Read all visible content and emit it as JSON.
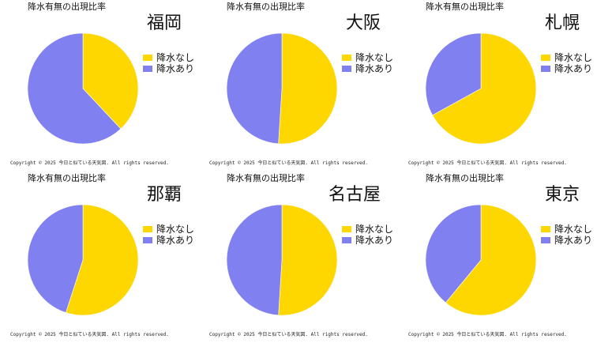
{
  "colors": {
    "no_precip": "#ffd700",
    "precip": "#8080f0"
  },
  "chart_data": [
    {
      "type": "pie",
      "title": "降水有無の出現比率",
      "city": "福岡",
      "categories": [
        "降水なし",
        "降水あり"
      ],
      "values": [
        38,
        62
      ],
      "legend": "right",
      "copyright": "Copyright ©  2025  今日と似ている天気図. All rights reserved."
    },
    {
      "type": "pie",
      "title": "降水有無の出現比率",
      "city": "大阪",
      "categories": [
        "降水なし",
        "降水あり"
      ],
      "values": [
        51,
        49
      ],
      "legend": "right",
      "copyright": "Copyright ©  2025  今日と似ている天気図. All rights reserved."
    },
    {
      "type": "pie",
      "title": "降水有無の出現比率",
      "city": "札幌",
      "categories": [
        "降水なし",
        "降水あり"
      ],
      "values": [
        67,
        33
      ],
      "legend": "right",
      "copyright": "Copyright ©  2025  今日と似ている天気図. All rights reserved."
    },
    {
      "type": "pie",
      "title": "降水有無の出現比率",
      "city": "那覇",
      "categories": [
        "降水なし",
        "降水あり"
      ],
      "values": [
        55,
        45
      ],
      "legend": "right",
      "copyright": "Copyright ©  2025  今日と似ている天気図. All rights reserved."
    },
    {
      "type": "pie",
      "title": "降水有無の出現比率",
      "city": "名古屋",
      "categories": [
        "降水なし",
        "降水あり"
      ],
      "values": [
        51,
        49
      ],
      "legend": "right",
      "copyright": "Copyright ©  2025  今日と似ている天気図. All rights reserved."
    },
    {
      "type": "pie",
      "title": "降水有無の出現比率",
      "city": "東京",
      "categories": [
        "降水なし",
        "降水あり"
      ],
      "values": [
        61,
        39
      ],
      "legend": "right",
      "copyright": "Copyright ©  2025  今日と似ている天気図. All rights reserved."
    }
  ]
}
